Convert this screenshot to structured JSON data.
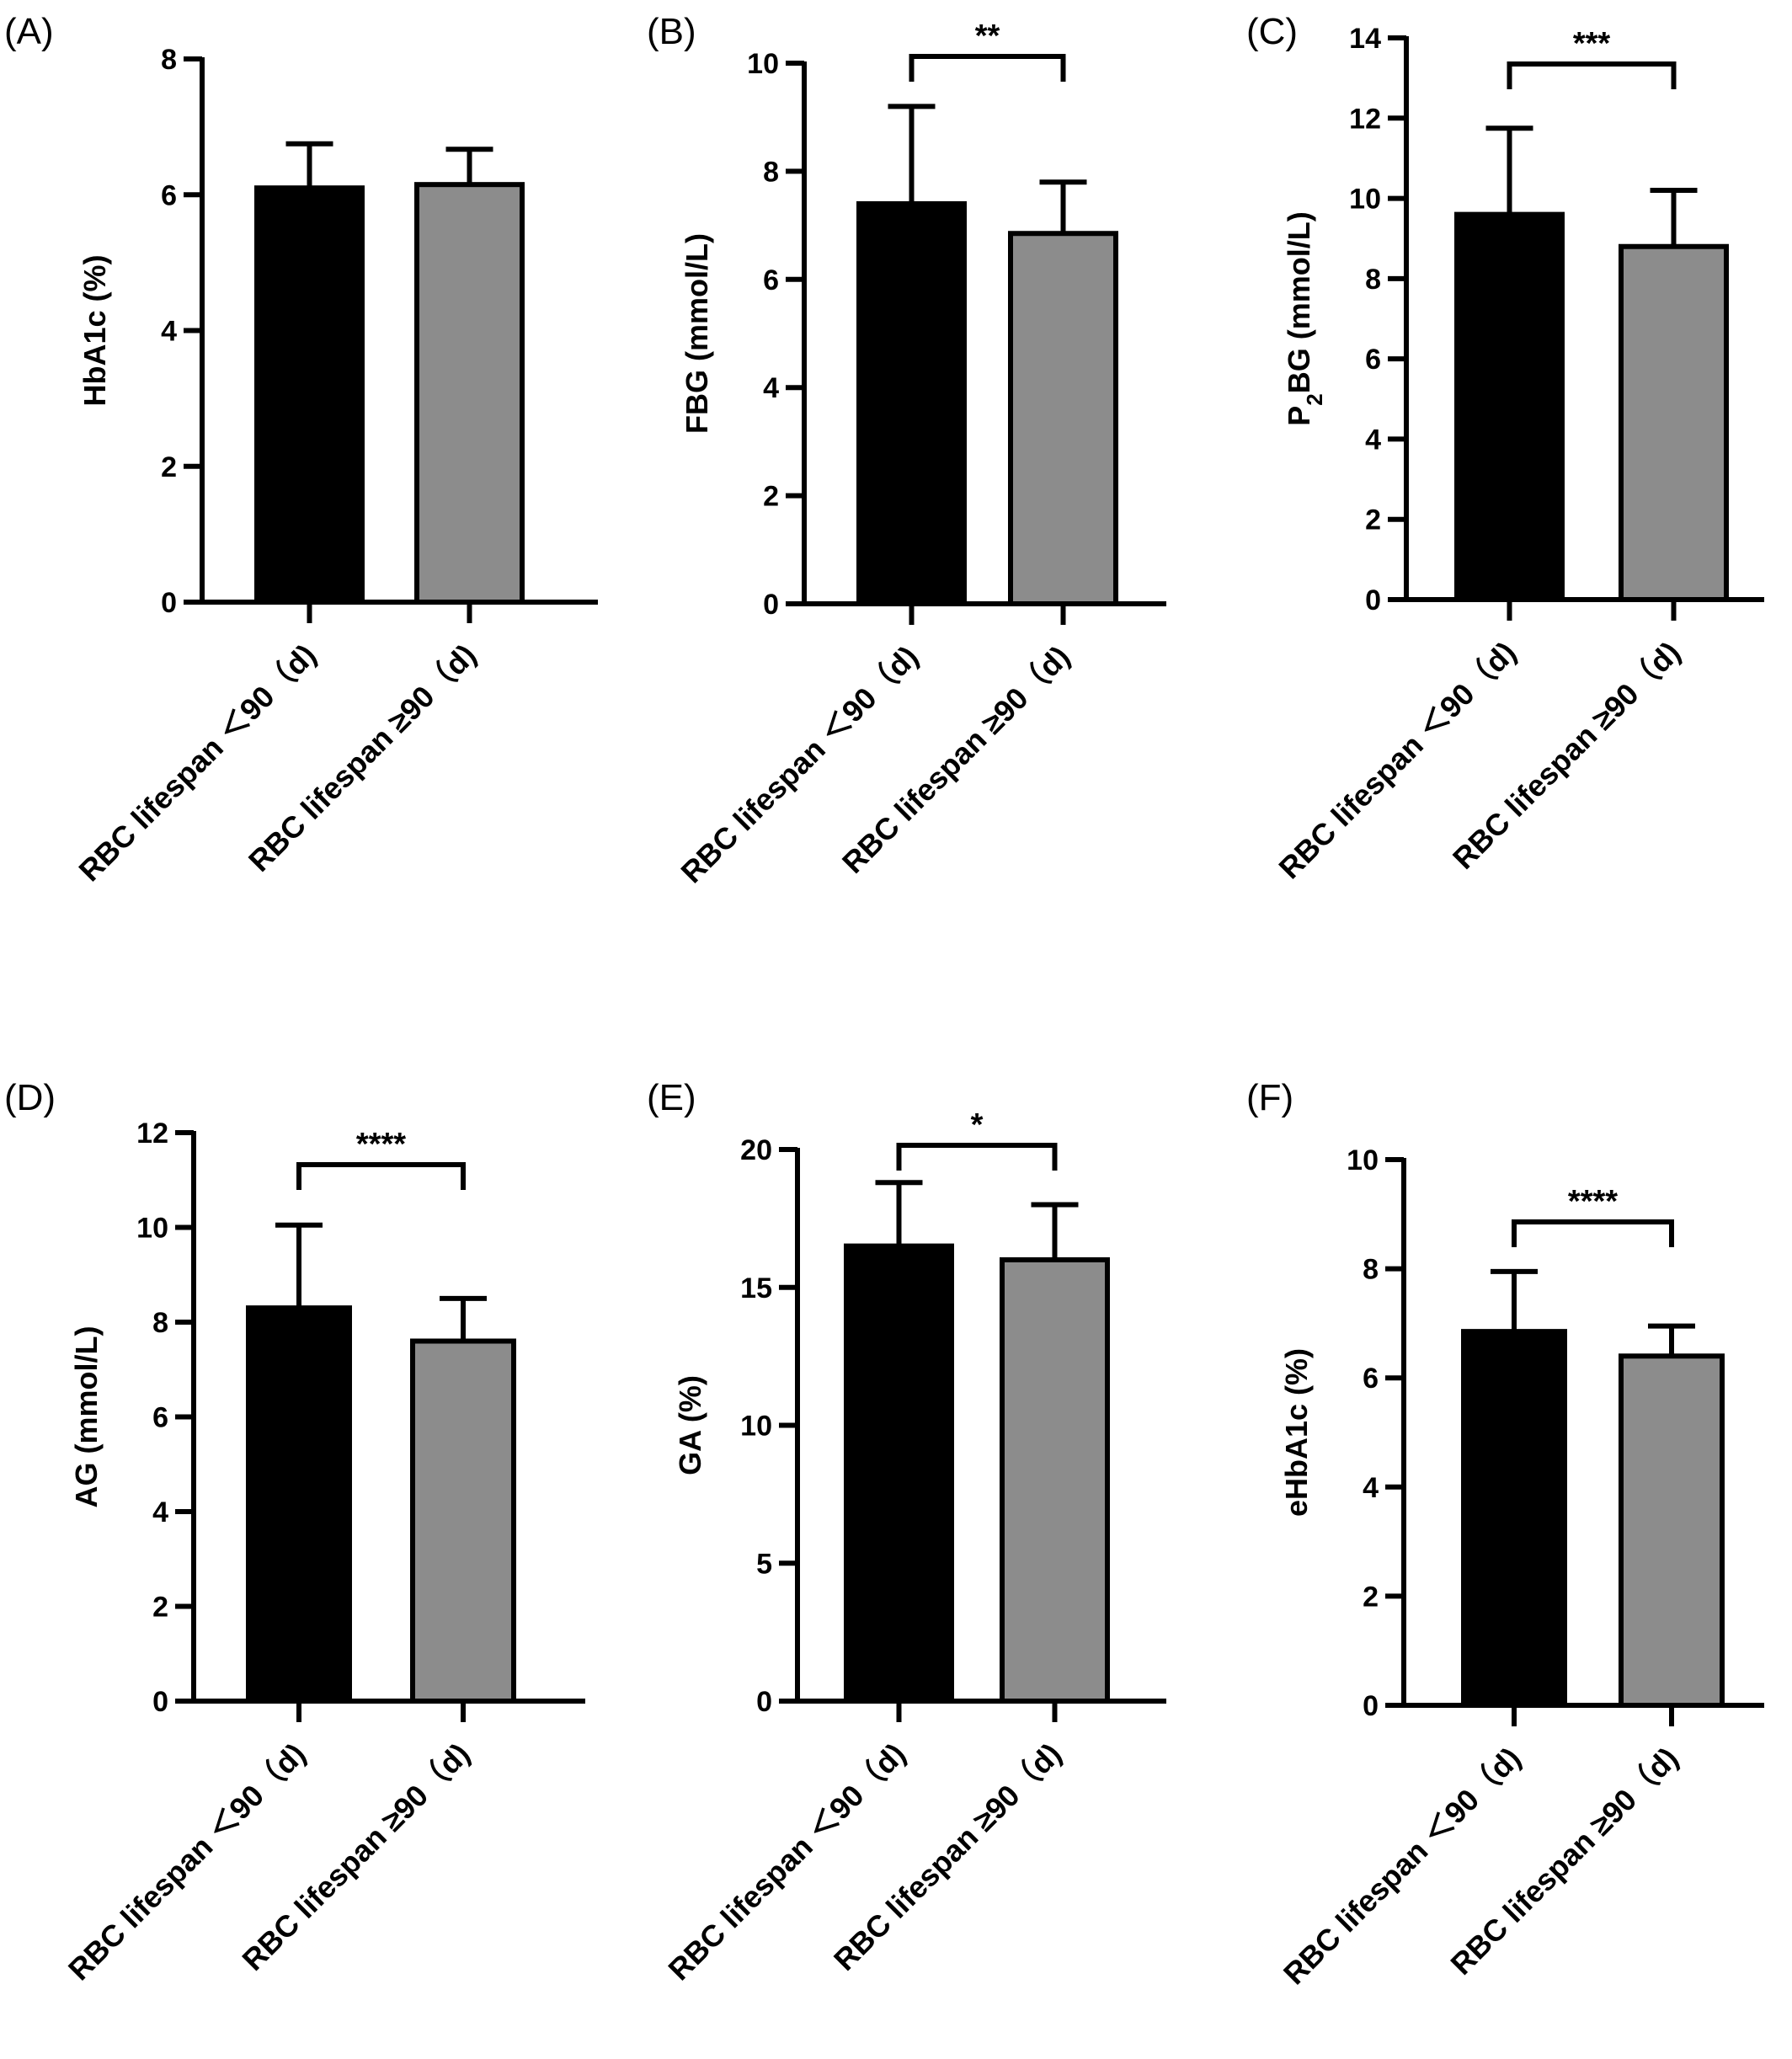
{
  "chart_data": [
    {
      "panel": "(A)",
      "type": "bar",
      "ylabel": "HbA1c (%)",
      "ylim": [
        0,
        8
      ],
      "yticks": [
        "0",
        "2",
        "4",
        "6",
        "8"
      ],
      "categories": [
        "RBC lifespan ＜90（d)",
        "RBC lifespan ≥90（d)"
      ],
      "values": [
        6.1,
        6.15
      ],
      "errors": [
        0.65,
        0.52
      ],
      "significance": ""
    },
    {
      "panel": "(B)",
      "type": "bar",
      "ylabel": "FBG (mmol/L)",
      "ylim": [
        0,
        10
      ],
      "yticks": [
        "0",
        "2",
        "4",
        "6",
        "8",
        "10"
      ],
      "categories": [
        "RBC lifespan ＜90（d)",
        "RBC lifespan ≥90（d)"
      ],
      "values": [
        7.4,
        6.85
      ],
      "errors": [
        1.8,
        0.95
      ],
      "significance": "**"
    },
    {
      "panel": "(C)",
      "type": "bar",
      "ylabel": "P2BG (mmol/L)",
      "ylim": [
        0,
        14
      ],
      "yticks": [
        "0",
        "2",
        "4",
        "6",
        "8",
        "10",
        "12",
        "14"
      ],
      "categories": [
        "RBC lifespan ＜90（d)",
        "RBC lifespan ≥90（d)"
      ],
      "values": [
        9.6,
        8.8
      ],
      "errors": [
        2.15,
        1.4
      ],
      "significance": "***"
    },
    {
      "panel": "(D)",
      "type": "bar",
      "ylabel": "AG (mmol/L)",
      "ylim": [
        0,
        12
      ],
      "yticks": [
        "0",
        "2",
        "4",
        "6",
        "8",
        "10",
        "12"
      ],
      "categories": [
        "RBC lifespan ＜90（d)",
        "RBC lifespan ≥90（d)"
      ],
      "values": [
        8.3,
        7.6
      ],
      "errors": [
        1.75,
        0.9
      ],
      "significance": "****"
    },
    {
      "panel": "(E)",
      "type": "bar",
      "ylabel": "GA (%)",
      "ylim": [
        0,
        20
      ],
      "yticks": [
        "0",
        "5",
        "10",
        "15",
        "20"
      ],
      "categories": [
        "RBC lifespan ＜90（d)",
        "RBC lifespan ≥90（d)"
      ],
      "values": [
        16.5,
        16.0
      ],
      "errors": [
        2.3,
        2.0
      ],
      "significance": "*"
    },
    {
      "panel": "(F)",
      "type": "bar",
      "ylabel": "eHbA1c (%)",
      "ylim": [
        0,
        10
      ],
      "yticks": [
        "0",
        "2",
        "4",
        "6",
        "8",
        "10"
      ],
      "categories": [
        "RBC lifespan ＜90（d)",
        "RBC lifespan ≥90（d)"
      ],
      "values": [
        6.85,
        6.4
      ],
      "errors": [
        1.1,
        0.55
      ],
      "significance": "****"
    }
  ],
  "colors": {
    "bar1": "#000000",
    "bar2": "#8c8c8c",
    "axis": "#000000"
  }
}
